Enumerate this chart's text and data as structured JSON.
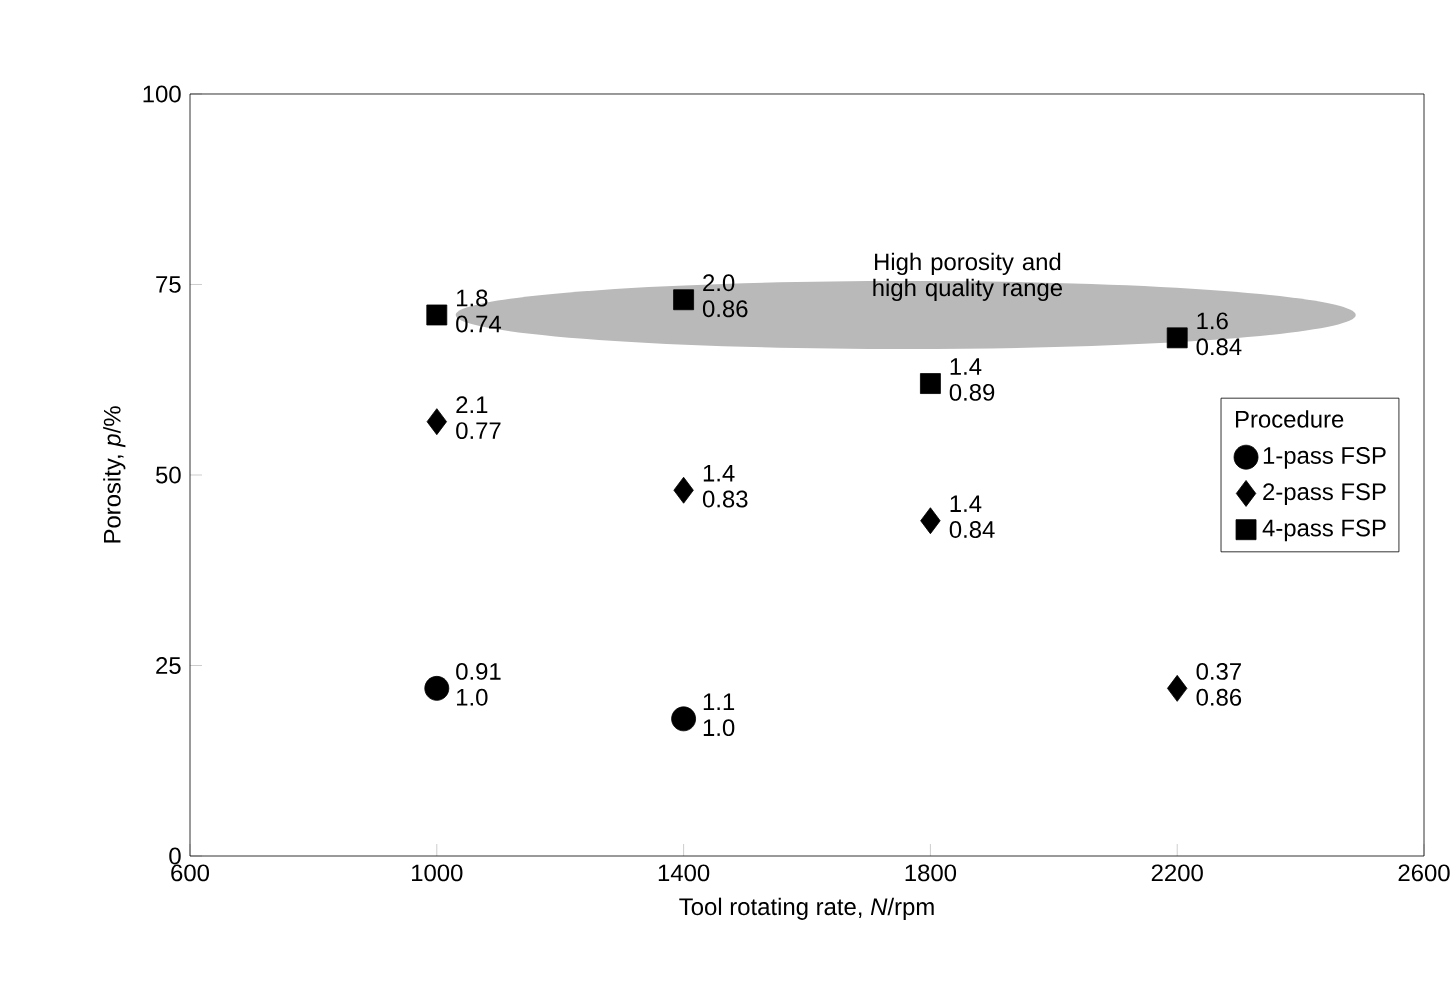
{
  "chart_data": {
    "type": "scatter",
    "xlabel": "Tool rotating rate, *N*/rpm",
    "ylabel": "Porosity, *p*/%",
    "legend_title": "Procedure",
    "xlim": [
      600,
      2600
    ],
    "xticks": [
      600,
      1000,
      1400,
      1800,
      2200,
      2600
    ],
    "ylim": [
      0,
      100
    ],
    "yticks": [
      0,
      25,
      50,
      75,
      100
    ],
    "series": [
      {
        "name": "1-pass FSP",
        "color": "#000000",
        "marker": "circle",
        "x": [
          1000,
          1400
        ],
        "values": [
          22,
          18
        ],
        "value_labels": [
          "0.91 1.0",
          "1.1 1.0"
        ]
      },
      {
        "name": "2-pass FSP",
        "color": "#000000",
        "marker": "diamond",
        "x": [
          1000,
          1400,
          1800,
          2200
        ],
        "values": [
          57,
          48,
          44,
          22
        ],
        "value_labels": [
          "2.1 0.77",
          "1.4 0.83",
          "1.4 0.84",
          "0.37 0.86"
        ]
      },
      {
        "name": "4-pass FSP",
        "color": "#000000",
        "marker": "square",
        "x": [
          1000,
          1400,
          1800,
          2200
        ],
        "values": [
          71,
          73,
          62,
          68
        ],
        "value_labels": [
          "1.8 0.74",
          "2.0 0.86",
          "1.4 0.89",
          "1.6 0.84"
        ]
      }
    ],
    "annotations": [
      "High porosity and high quality range"
    ],
    "legend": "right",
    "grid": false
  }
}
